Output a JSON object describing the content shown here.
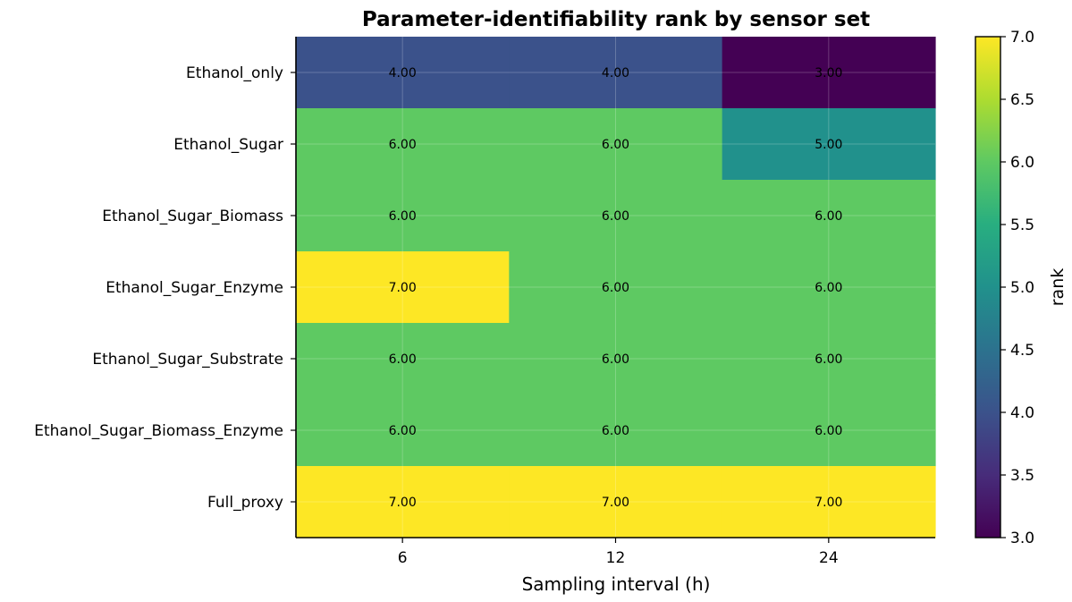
{
  "chart_data": {
    "type": "heatmap",
    "title": "Parameter-identifiability rank by sensor set",
    "xlabel": "Sampling interval (h)",
    "ylabel": "",
    "x_categories": [
      "6",
      "12",
      "24"
    ],
    "y_categories": [
      "Ethanol_only",
      "Ethanol_Sugar",
      "Ethanol_Sugar_Biomass",
      "Ethanol_Sugar_Enzyme",
      "Ethanol_Sugar_Substrate",
      "Ethanol_Sugar_Biomass_Enzyme",
      "Full_proxy"
    ],
    "values": [
      [
        4,
        4,
        3
      ],
      [
        6,
        6,
        5
      ],
      [
        6,
        6,
        6
      ],
      [
        7,
        6,
        6
      ],
      [
        6,
        6,
        6
      ],
      [
        6,
        6,
        6
      ],
      [
        7,
        7,
        7
      ]
    ],
    "cell_labels": [
      [
        "4.00",
        "4.00",
        "3.00"
      ],
      [
        "6.00",
        "6.00",
        "5.00"
      ],
      [
        "6.00",
        "6.00",
        "6.00"
      ],
      [
        "7.00",
        "6.00",
        "6.00"
      ],
      [
        "6.00",
        "6.00",
        "6.00"
      ],
      [
        "6.00",
        "6.00",
        "6.00"
      ],
      [
        "7.00",
        "7.00",
        "7.00"
      ]
    ],
    "colormap": "viridis",
    "color_range": [
      3.0,
      7.0
    ],
    "colorbar": {
      "label": "rank",
      "ticks": [
        "3.0",
        "3.5",
        "4.0",
        "4.5",
        "5.0",
        "5.5",
        "6.0",
        "6.5",
        "7.0"
      ],
      "placement": "right"
    },
    "grid": true
  }
}
